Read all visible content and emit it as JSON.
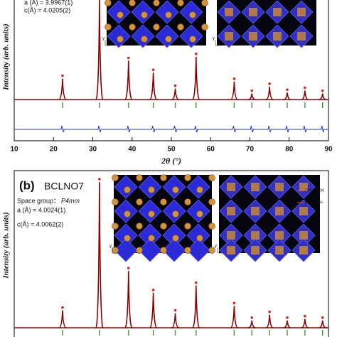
{
  "chart_data": [
    {
      "type": "line",
      "annotations": [
        "a (Å)  =  3.9967(1)",
        "c(Å)  =  4.0205(2)"
      ],
      "ylabel": "Intensity (arb. units)",
      "xlabel": "2θ (°)",
      "x": [
        22.3,
        31.7,
        39.1,
        45.4,
        51.0,
        56.3,
        66.0,
        70.5,
        75.0,
        79.5,
        84.0,
        88.5
      ],
      "values": [
        21,
        100,
        39,
        27,
        11,
        43,
        18,
        6,
        13,
        7,
        9,
        6
      ],
      "xlim": [
        10,
        90
      ],
      "ylim": [
        0,
        100
      ],
      "xticks": [
        10,
        20,
        30,
        40,
        50,
        60,
        70,
        80,
        90
      ],
      "color": "#8b0000",
      "observed_color": "#e0201b",
      "bragg_color": "#2ca02c",
      "difference_color": "#2233dd"
    },
    {
      "type": "line",
      "panel_label": "(b)",
      "title": "BCLNO7",
      "space_group_label": "Space group：",
      "space_group": "P4mm",
      "annotations": [
        "a (Å)  =  4.0024(1)",
        "c(Å)  =  4.0062(2)"
      ],
      "inset_labels": [
        "(Ti/Nb/Li)O6",
        "Ba2+/Ca2+"
      ],
      "ylabel": "Intensity (arb. units)",
      "x": [
        22.3,
        31.7,
        39.1,
        45.4,
        51.0,
        56.3,
        66.0,
        70.5,
        75.0,
        79.5,
        84.0,
        88.5
      ],
      "values": [
        12,
        100,
        39,
        24,
        10,
        29,
        15,
        5,
        9,
        5,
        6,
        5
      ],
      "xlim": [
        10,
        90
      ],
      "ylim": [
        0,
        100
      ],
      "color": "#8b0000",
      "observed_color": "#e0201b",
      "bragg_color": "#2ca02c"
    }
  ]
}
